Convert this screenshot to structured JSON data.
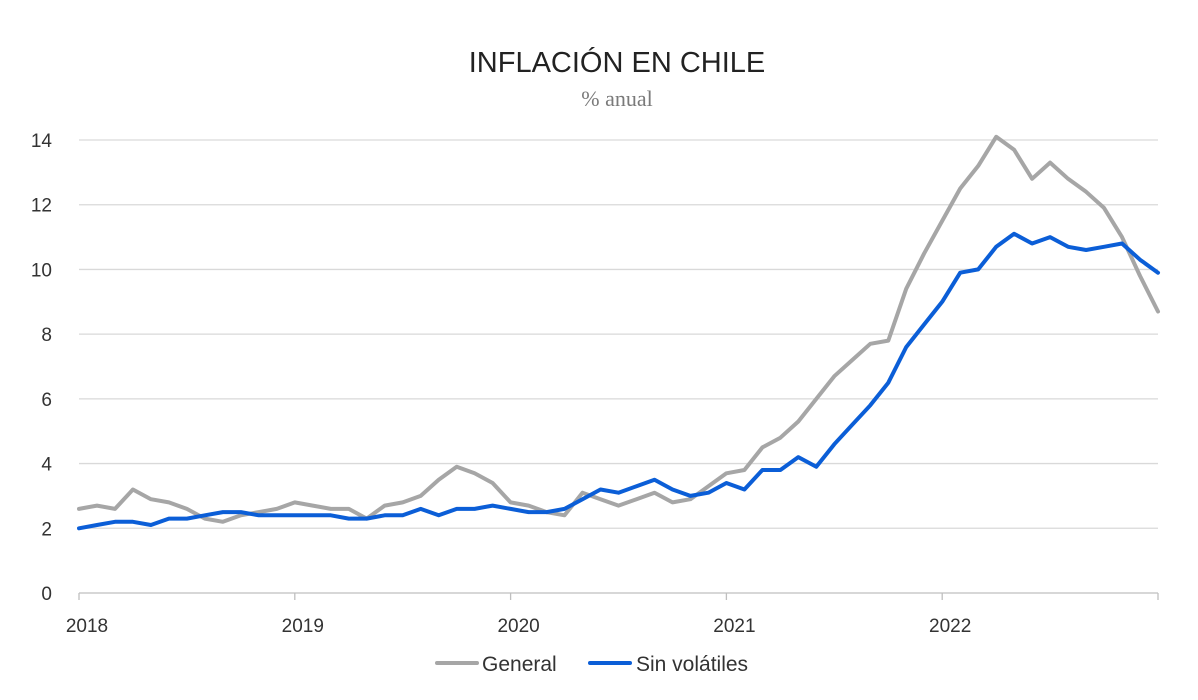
{
  "chart_data": {
    "type": "line",
    "title": "INFLACIÓN EN CHILE",
    "subtitle": "% anual",
    "xlabel": "",
    "ylabel": "",
    "ylim": [
      0,
      14
    ],
    "yticks": [
      0,
      2,
      4,
      6,
      8,
      10,
      12,
      14
    ],
    "x_tick_labels": [
      "2018",
      "2019",
      "2020",
      "2021",
      "2022"
    ],
    "x_start_year": 2018,
    "grid": true,
    "legend": "bottom-center",
    "series": [
      {
        "name": "General",
        "color": "#a6a6a6",
        "values": [
          2.6,
          2.7,
          2.6,
          3.2,
          2.9,
          2.8,
          2.6,
          2.3,
          2.2,
          2.4,
          2.5,
          2.6,
          2.8,
          2.7,
          2.6,
          2.6,
          2.3,
          2.7,
          2.8,
          3.0,
          3.5,
          3.9,
          3.7,
          3.4,
          2.8,
          2.7,
          2.5,
          2.4,
          3.1,
          2.9,
          2.7,
          2.9,
          3.1,
          2.8,
          2.9,
          3.3,
          3.7,
          3.8,
          4.5,
          4.8,
          5.3,
          6.0,
          6.7,
          7.2,
          7.7,
          7.8,
          9.4,
          10.5,
          11.5,
          12.5,
          13.2,
          14.1,
          13.7,
          12.8,
          13.3,
          12.8,
          12.4,
          11.9,
          11.0,
          9.8,
          8.7
        ]
      },
      {
        "name": "Sin volátiles",
        "color": "#0b5ed7",
        "values": [
          2.0,
          2.1,
          2.2,
          2.2,
          2.1,
          2.3,
          2.3,
          2.4,
          2.5,
          2.5,
          2.4,
          2.4,
          2.4,
          2.4,
          2.4,
          2.3,
          2.3,
          2.4,
          2.4,
          2.6,
          2.4,
          2.6,
          2.6,
          2.7,
          2.6,
          2.5,
          2.5,
          2.6,
          2.9,
          3.2,
          3.1,
          3.3,
          3.5,
          3.2,
          3.0,
          3.1,
          3.4,
          3.2,
          3.8,
          3.8,
          4.2,
          3.9,
          4.6,
          5.2,
          5.8,
          6.5,
          7.6,
          8.3,
          9.0,
          9.9,
          10.0,
          10.7,
          11.1,
          10.8,
          11.0,
          10.7,
          10.6,
          10.7,
          10.8,
          10.3,
          9.9
        ]
      }
    ]
  }
}
